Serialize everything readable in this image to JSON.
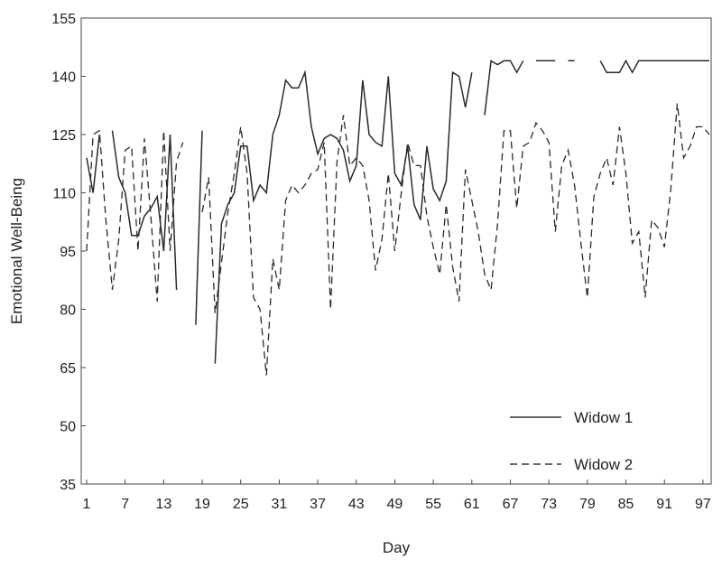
{
  "chart_data": {
    "type": "line",
    "xlabel": "Day",
    "ylabel": "Emotional Well-Being",
    "xlim": [
      1,
      98
    ],
    "ylim": [
      35,
      155
    ],
    "yticks": [
      35,
      50,
      65,
      80,
      95,
      110,
      125,
      140,
      155
    ],
    "xticks": [
      1,
      7,
      13,
      19,
      25,
      31,
      37,
      43,
      49,
      55,
      61,
      67,
      73,
      79,
      85,
      91,
      97
    ],
    "grid": false,
    "legend_position": "bottom-right",
    "series": [
      {
        "name": "Widow 1",
        "style": "solid",
        "points": [
          [
            1,
            119
          ],
          [
            2,
            110
          ],
          [
            3,
            125
          ],
          [
            5,
            126
          ],
          [
            6,
            114
          ],
          [
            7,
            110
          ],
          [
            8,
            99
          ],
          [
            9,
            99
          ],
          [
            10,
            104
          ],
          [
            11,
            106
          ],
          [
            12,
            109
          ],
          [
            13,
            95
          ],
          [
            14,
            125
          ],
          [
            15,
            85
          ],
          [
            18,
            76
          ],
          [
            19,
            126
          ],
          [
            21,
            66
          ],
          [
            22,
            102
          ],
          [
            23,
            107
          ],
          [
            24,
            110
          ],
          [
            25,
            122
          ],
          [
            26,
            122
          ],
          [
            27,
            108
          ],
          [
            28,
            112
          ],
          [
            29,
            110
          ],
          [
            30,
            125
          ],
          [
            31,
            130
          ],
          [
            32,
            139
          ],
          [
            33,
            137
          ],
          [
            34,
            137
          ],
          [
            35,
            141
          ],
          [
            36,
            127
          ],
          [
            37,
            120
          ],
          [
            38,
            124
          ],
          [
            39,
            125
          ],
          [
            40,
            124
          ],
          [
            41,
            121
          ],
          [
            42,
            113
          ],
          [
            43,
            117
          ],
          [
            44,
            139
          ],
          [
            45,
            125
          ],
          [
            46,
            123
          ],
          [
            47,
            122
          ],
          [
            48,
            140
          ],
          [
            49,
            115
          ],
          [
            50,
            112
          ],
          [
            51,
            122
          ],
          [
            52,
            107
          ],
          [
            53,
            103
          ],
          [
            54,
            122
          ],
          [
            55,
            111
          ],
          [
            56,
            108
          ],
          [
            57,
            113
          ],
          [
            58,
            141
          ],
          [
            59,
            140
          ],
          [
            60,
            132
          ],
          [
            61,
            141
          ],
          [
            63,
            130
          ],
          [
            64,
            144
          ],
          [
            65,
            143
          ],
          [
            66,
            144
          ],
          [
            67,
            144
          ],
          [
            68,
            141
          ],
          [
            69,
            144
          ],
          [
            71,
            144
          ],
          [
            72,
            144
          ],
          [
            73,
            144
          ],
          [
            74,
            144
          ],
          [
            76,
            144
          ],
          [
            77,
            144
          ],
          [
            81,
            144
          ],
          [
            82,
            141
          ],
          [
            83,
            141
          ],
          [
            84,
            141
          ],
          [
            85,
            144
          ],
          [
            86,
            141
          ],
          [
            87,
            144
          ],
          [
            88,
            144
          ],
          [
            89,
            144
          ],
          [
            90,
            144
          ],
          [
            91,
            144
          ],
          [
            92,
            144
          ],
          [
            93,
            144
          ],
          [
            94,
            144
          ],
          [
            95,
            144
          ],
          [
            96,
            144
          ],
          [
            97,
            144
          ],
          [
            98,
            144
          ]
        ]
      },
      {
        "name": "Widow 2",
        "style": "dashed",
        "points": [
          [
            1,
            95
          ],
          [
            2,
            125
          ],
          [
            3,
            126
          ],
          [
            4,
            103
          ],
          [
            5,
            85
          ],
          [
            6,
            98
          ],
          [
            7,
            121
          ],
          [
            8,
            122
          ],
          [
            9,
            95
          ],
          [
            10,
            124
          ],
          [
            11,
            104
          ],
          [
            12,
            82
          ],
          [
            13,
            126
          ],
          [
            14,
            95
          ],
          [
            15,
            118
          ],
          [
            16,
            123
          ],
          [
            19,
            105
          ],
          [
            20,
            114
          ],
          [
            21,
            79
          ],
          [
            22,
            92
          ],
          [
            23,
            105
          ],
          [
            24,
            115
          ],
          [
            25,
            127
          ],
          [
            26,
            115
          ],
          [
            27,
            83
          ],
          [
            28,
            80
          ],
          [
            29,
            63
          ],
          [
            30,
            93
          ],
          [
            31,
            85
          ],
          [
            32,
            108
          ],
          [
            33,
            112
          ],
          [
            34,
            110
          ],
          [
            35,
            112
          ],
          [
            36,
            115
          ],
          [
            37,
            116
          ],
          [
            38,
            123
          ],
          [
            39,
            80
          ],
          [
            40,
            118
          ],
          [
            41,
            130
          ],
          [
            42,
            117
          ],
          [
            43,
            119
          ],
          [
            44,
            117
          ],
          [
            45,
            108
          ],
          [
            46,
            90
          ],
          [
            47,
            98
          ],
          [
            48,
            115
          ],
          [
            49,
            95
          ],
          [
            50,
            110
          ],
          [
            51,
            123
          ],
          [
            52,
            117
          ],
          [
            53,
            117
          ],
          [
            54,
            104
          ],
          [
            55,
            96
          ],
          [
            56,
            89
          ],
          [
            57,
            107
          ],
          [
            58,
            91
          ],
          [
            59,
            82
          ],
          [
            60,
            116
          ],
          [
            61,
            108
          ],
          [
            62,
            100
          ],
          [
            63,
            89
          ],
          [
            64,
            85
          ],
          [
            65,
            102
          ],
          [
            66,
            126
          ],
          [
            67,
            126
          ],
          [
            68,
            106
          ],
          [
            69,
            122
          ],
          [
            70,
            123
          ],
          [
            71,
            128
          ],
          [
            72,
            126
          ],
          [
            73,
            123
          ],
          [
            74,
            100
          ],
          [
            75,
            117
          ],
          [
            76,
            121
          ],
          [
            77,
            112
          ],
          [
            78,
            97
          ],
          [
            79,
            83
          ],
          [
            80,
            109
          ],
          [
            81,
            115
          ],
          [
            82,
            119
          ],
          [
            83,
            112
          ],
          [
            84,
            127
          ],
          [
            85,
            115
          ],
          [
            86,
            97
          ],
          [
            87,
            100
          ],
          [
            88,
            83
          ],
          [
            89,
            103
          ],
          [
            90,
            101
          ],
          [
            91,
            96
          ],
          [
            92,
            111
          ],
          [
            93,
            133
          ],
          [
            94,
            119
          ],
          [
            95,
            122
          ],
          [
            96,
            127
          ],
          [
            97,
            127
          ],
          [
            98,
            125
          ]
        ]
      }
    ]
  }
}
